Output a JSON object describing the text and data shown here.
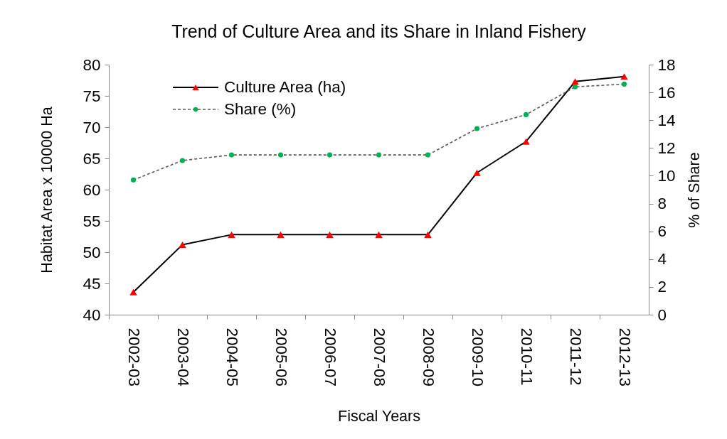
{
  "chart_data": {
    "type": "line",
    "title": "Trend of Culture Area and its Share in Inland Fishery",
    "xlabel": "Fiscal Years",
    "ylabel": "Habitat Area x 10000 Ha",
    "y2label": "% of Share",
    "categories": [
      "2002-03",
      "2003-04",
      "2004-05",
      "2005-06",
      "2006-07",
      "2007-08",
      "2008-09",
      "2009-10",
      "2010-11",
      "2011-12",
      "2012-13"
    ],
    "series": [
      {
        "name": "Culture Area (ha)",
        "color": "#000000",
        "colors": [
          "#ff0000",
          "#ff0000",
          "#ff0000",
          "#ff0000",
          "#ff0000",
          "#ff0000",
          "#ff0000",
          "#ff0000",
          "#ff0000",
          "#ff0000",
          "#ff0000"
        ],
        "marker": "triangle",
        "line_style": "solid",
        "values": [
          43.6,
          51.2,
          52.8,
          52.8,
          52.8,
          52.8,
          52.8,
          62.7,
          67.7,
          77.3,
          78.1
        ]
      },
      {
        "name": "Share (%)",
        "color": "#595959",
        "colors": [
          "#00b050",
          "#00b050",
          "#00b050",
          "#00b050",
          "#00b050",
          "#00b050",
          "#00b050",
          "#00b050",
          "#00b050",
          "#00b050",
          "#00b050"
        ],
        "marker": "circle",
        "line_style": "dashed",
        "axis": "y2",
        "values": [
          9.7,
          11.1,
          11.5,
          11.5,
          11.5,
          11.5,
          11.5,
          13.4,
          14.4,
          16.4,
          16.6
        ]
      }
    ],
    "ylim": [
      40,
      80
    ],
    "yticks": [
      40,
      45,
      50,
      55,
      60,
      65,
      70,
      75,
      80
    ],
    "y2lim": [
      0,
      18
    ],
    "y2ticks": [
      0,
      2,
      4,
      6,
      8,
      10,
      12,
      14,
      16,
      18
    ],
    "legend": "top left"
  }
}
